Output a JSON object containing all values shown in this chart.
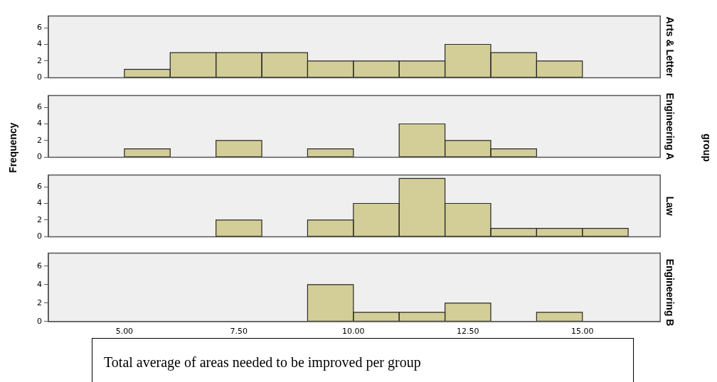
{
  "chart_data": [
    {
      "type": "histogram",
      "title": "Arts & Letter",
      "bins": [
        5,
        6,
        7,
        8,
        9,
        10,
        11,
        12,
        13,
        14,
        15,
        16
      ],
      "values": [
        1,
        3,
        3,
        3,
        2,
        2,
        2,
        4,
        3,
        2,
        0
      ],
      "color": "#d3ce97",
      "xlim": [
        3.34,
        16.7
      ],
      "ylim": [
        0,
        7.4
      ],
      "yticks": [
        0,
        2,
        4,
        6
      ],
      "grid": false,
      "tick_labels": "y"
    },
    {
      "type": "histogram",
      "title": "Engineering A",
      "ylabel": "Frequency",
      "annotations": [
        "group"
      ],
      "bins": [
        5,
        6,
        7,
        8,
        9,
        10,
        11,
        12,
        13,
        14,
        15,
        16
      ],
      "values": [
        1,
        0,
        2,
        0,
        1,
        0,
        4,
        2,
        1,
        0,
        0
      ],
      "color": "#d3ce97",
      "xlim": [
        3.34,
        16.7
      ],
      "ylim": [
        0,
        7.4
      ],
      "yticks": [
        0,
        2,
        4,
        6
      ],
      "grid": false,
      "tick_labels": "y"
    },
    {
      "type": "histogram",
      "title": "Law",
      "bins": [
        5,
        6,
        7,
        8,
        9,
        10,
        11,
        12,
        13,
        14,
        15,
        16
      ],
      "values": [
        0,
        0,
        2,
        0,
        2,
        4,
        7,
        4,
        1,
        1,
        1
      ],
      "color": "#d3ce97",
      "xlim": [
        3.34,
        16.7
      ],
      "ylim": [
        0,
        7.4
      ],
      "yticks": [
        0,
        2,
        4,
        6
      ],
      "grid": false,
      "tick_labels": "y"
    },
    {
      "type": "histogram",
      "title": "Engineering B",
      "xlabel": "Total average of areas needed to be improved per group",
      "bins": [
        5,
        6,
        7,
        8,
        9,
        10,
        11,
        12,
        13,
        14,
        15,
        16
      ],
      "values": [
        0,
        0,
        0,
        0,
        4,
        1,
        1,
        2,
        0,
        1,
        0
      ],
      "color": "#d3ce97",
      "xlim": [
        3.34,
        16.7
      ],
      "ylim": [
        0,
        7.4
      ],
      "yticks": [
        0,
        2,
        4,
        6
      ],
      "xticks": [
        {
          "value": 5,
          "label": "5.00"
        },
        {
          "value": 7.5,
          "label": "7.50"
        },
        {
          "value": 10,
          "label": "10.00"
        },
        {
          "value": 12.5,
          "label": "12.50"
        },
        {
          "value": 15,
          "label": "15.00"
        }
      ],
      "grid": false
    }
  ]
}
